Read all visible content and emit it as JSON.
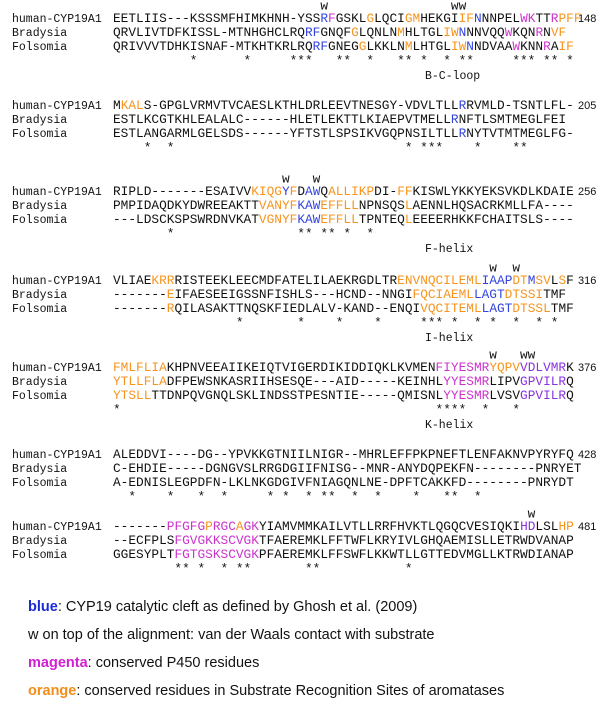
{
  "blocks": [
    {
      "w": "                           w                ww",
      "rows": [
        {
          "name": "human-CYP19A1",
          "end": "148",
          "seq": [
            "EETLIIS---KSSSMFHIMKHNH-YSS",
            {
              "text": "R",
              "color": "#3344dd"
            },
            {
              "text": "F",
              "color": "#cc33cc"
            },
            "GSKL",
            {
              "text": "G",
              "color": "#f7941d"
            },
            "LQCI",
            {
              "text": "GM",
              "color": "#f7941d"
            },
            "HEKGI",
            {
              "text": "IF",
              "color": "#f7941d"
            },
            {
              "text": "N",
              "color": "#3344dd"
            },
            "NNPEL",
            {
              "text": "W",
              "color": "#cc33cc"
            },
            {
              "text": "K",
              "color": "#cc33cc"
            },
            "TT",
            {
              "text": "R",
              "color": "#cc33cc"
            },
            {
              "text": "P",
              "color": "#f7941d"
            },
            {
              "text": "FF",
              "color": "#f7941d"
            }
          ]
        },
        {
          "name": "Bradysia",
          "seq": [
            "QRVLIVTDFKISSL-MTNHGHCLRQ",
            {
              "text": "RF",
              "color": "#3344dd"
            },
            "GNQF",
            {
              "text": "G",
              "color": "#f7941d"
            },
            "LQNLN",
            {
              "text": "M",
              "color": "#f7941d"
            },
            "HLTGL",
            {
              "text": "IW",
              "color": "#f7941d"
            },
            {
              "text": "N",
              "color": "#3344dd"
            },
            "NNVQQ",
            {
              "text": "W",
              "color": "#cc33cc"
            },
            "KQN",
            {
              "text": "R",
              "color": "#cc33cc"
            },
            "N",
            {
              "text": "VF",
              "color": "#f7941d"
            }
          ]
        },
        {
          "name": "Folsomia",
          "seq": [
            "QRIVVVTDHKISNAF-MTKHTKRLRQ",
            {
              "text": "RF",
              "color": "#3344dd"
            },
            "GNEG",
            {
              "text": "G",
              "color": "#f7941d"
            },
            "LKKLN",
            {
              "text": "M",
              "color": "#f7941d"
            },
            "LHTGL",
            {
              "text": "IW",
              "color": "#f7941d"
            },
            {
              "text": "N",
              "color": "#3344dd"
            },
            "NDVAA",
            {
              "text": "W",
              "color": "#cc33cc"
            },
            "KNN",
            {
              "text": "R",
              "color": "#cc33cc"
            },
            "A",
            {
              "text": "IF",
              "color": "#f7941d"
            }
          ]
        }
      ],
      "stars": "          *      *     ***   **  *   ** *  * **     *** ** *",
      "label": "B-C-loop"
    },
    {
      "rows": [
        {
          "name": "human-CYP19A1",
          "end": "205",
          "seq": [
            "M",
            {
              "text": "KAL",
              "color": "#f7941d"
            },
            "S-GPGLVRMVTVCAESLKTHLDRLEEVTNESGY-VDVLTLL",
            {
              "text": "R",
              "color": "#3344dd"
            },
            "RVMLD-TSNTLFL-"
          ]
        },
        {
          "name": "Bradysia",
          "seq": [
            "ESTLKCGTKHLEALALC------HLETLEKTTLKIAEPVTMELL",
            {
              "text": "R",
              "color": "#3344dd"
            },
            "NFTLSMTMEGLFEI"
          ]
        },
        {
          "name": "Folsomia",
          "seq": [
            "ESTLANGARMLGELSDS------YFTSTLSPSIKVGQPNSILTLL",
            {
              "text": "R",
              "color": "#3344dd"
            },
            "NYTVTMTMEGLFG-"
          ]
        }
      ],
      "stars": "    *  *                              * ***    *    **"
    },
    {
      "w": "                      w   w",
      "rows": [
        {
          "name": "human-CYP19A1",
          "end": "256",
          "seq": [
            "RIPLD-------ESAIVV",
            {
              "text": "KIQG",
              "color": "#f7941d"
            },
            {
              "text": "Y",
              "color": "#3344dd"
            },
            {
              "text": "F",
              "color": "#f7941d"
            },
            "D",
            {
              "text": "AW",
              "color": "#3344dd"
            },
            "Q",
            {
              "text": "ALLIKP",
              "color": "#f7941d"
            },
            "DI-",
            {
              "text": "FF",
              "color": "#f7941d"
            },
            "KISWLYKKYEKSVKDLKDAIE"
          ]
        },
        {
          "name": "Bradysia",
          "seq": [
            "PMPIDAQDKYDWREEAKTT",
            {
              "text": "VANYF",
              "color": "#f7941d"
            },
            {
              "text": "KAW",
              "color": "#3344dd"
            },
            {
              "text": "EFFLL",
              "color": "#f7941d"
            },
            "NPNSQS",
            {
              "text": "L",
              "color": "#f7941d"
            },
            "AENNLHQSACRKMLLFA----"
          ]
        },
        {
          "name": "Folsomia",
          "seq": [
            "---LDSCKSPSWRDNVKAT",
            {
              "text": "VGNYF",
              "color": "#f7941d"
            },
            {
              "text": "KAW",
              "color": "#3344dd"
            },
            {
              "text": "EFFLL",
              "color": "#f7941d"
            },
            "TPNTEQ",
            {
              "text": "L",
              "color": "#f7941d"
            },
            "EEEERHKKFCHAITSLS----"
          ]
        }
      ],
      "stars": "       *                ** ** *  *",
      "label": "F-helix"
    },
    {
      "w": "                                                 w  w",
      "rows": [
        {
          "name": "human-CYP19A1",
          "end": "316",
          "seq": [
            "VLIAE",
            {
              "text": "KRR",
              "color": "#f7941d"
            },
            "RISTEEKLEECMDFATELILAEKRGDLTR",
            {
              "text": "ENV",
              "color": "#f7941d"
            },
            {
              "text": "NQCILEML",
              "color": "#f7941d"
            },
            {
              "text": "IAA",
              "color": "#3344dd"
            },
            {
              "text": "P",
              "color": "#3344dd"
            },
            {
              "text": "DT",
              "color": "#f7941d"
            },
            {
              "text": "M",
              "color": "#3344dd"
            },
            {
              "text": "SV",
              "color": "#f7941d"
            },
            "L",
            {
              "text": "S",
              "color": "#f7941d"
            },
            "F"
          ]
        },
        {
          "name": "Bradysia",
          "seq": [
            "-------",
            {
              "text": "E",
              "color": "#f7941d"
            },
            "IFAESEEIGSSNFISHLS---HCND--NNGI",
            {
              "text": "FQCIAEML",
              "color": "#f7941d"
            },
            {
              "text": "LAGT",
              "color": "#3344dd"
            },
            {
              "text": "DTSS",
              "color": "#f7941d"
            },
            {
              "text": "I",
              "color": "#f7941d"
            },
            "TMF"
          ]
        },
        {
          "name": "Folsomia",
          "seq": [
            "-------",
            {
              "text": "R",
              "color": "#f7941d"
            },
            "QILASAKTTNQSKFIEDLALV-KAND--ENQI",
            {
              "text": "VQCITEML",
              "color": "#f7941d"
            },
            {
              "text": "LAGT",
              "color": "#3344dd"
            },
            {
              "text": "DTSS",
              "color": "#f7941d"
            },
            {
              "text": "L",
              "color": "#f7941d"
            },
            "TMF"
          ]
        }
      ],
      "stars": "                *       *    *    *     *** *  * *  *  * *",
      "label": "I-helix"
    },
    {
      "w": "                                                 w   ww",
      "rows": [
        {
          "name": "human-CYP19A1",
          "end": "376",
          "seq": [
            {
              "text": "FMLFLIA",
              "color": "#f7941d"
            },
            "KHPNVEEAIIKEIQTVIGERDIKIDDIQKLKVMEN",
            {
              "text": "FIYESMR",
              "color": "#cc33cc"
            },
            {
              "text": "YQPV",
              "color": "#f7941d"
            },
            {
              "text": "VDLVMR",
              "color": "#8833dd"
            },
            "K"
          ]
        },
        {
          "name": "Bradysia",
          "seq": [
            {
              "text": "YTLLFLA",
              "color": "#f7941d"
            },
            "DFPEWSNKASRIIHSESQE---AID-----KEINHL",
            {
              "text": "YYESMR",
              "color": "#cc33cc"
            },
            "LIPV",
            {
              "text": "GPVILR",
              "color": "#8833dd"
            },
            "Q"
          ]
        },
        {
          "name": "Folsomia",
          "seq": [
            {
              "text": "YTSLL",
              "color": "#f7941d"
            },
            "TTDNPQVGNQLSKLINDSSTPESNTIE-----QMISNL",
            {
              "text": "YYESMR",
              "color": "#cc33cc"
            },
            "LVSV",
            {
              "text": "GPVILR",
              "color": "#8833dd"
            },
            "Q"
          ]
        }
      ],
      "stars": "*                                         ****  *   *",
      "label": "K-helix"
    },
    {
      "rows": [
        {
          "name": "human-CYP19A1",
          "end": "428",
          "seq": [
            "ALEDDVI----DG--YPVKKGTNIILNIGR--MHRLEFFPKPNEFTLENFAKNVPYRYFQ"
          ]
        },
        {
          "name": "Bradysia",
          "seq": [
            "C-EHDIE-----DGNGVSLRRGDGIIFNISG--MNR-ANYDQPEKFN--------PNRYET"
          ]
        },
        {
          "name": "Folsomia",
          "seq": [
            "A-EDNISLEGPDFN-LKLNKGDGIVFNIAGQNLNE-DPFTCAKKFD--------PNRYDT"
          ]
        }
      ],
      "stars": "  *    *   *  *     * *  * **  *  *    *   **  *"
    },
    {
      "w": "                                                      w",
      "rows": [
        {
          "name": "human-CYP19A1",
          "end": "481",
          "seq": [
            "-------",
            {
              "text": "PFGFG",
              "color": "#cc33cc"
            },
            {
              "text": "P",
              "color": "#f7941d"
            },
            {
              "text": "RGC",
              "color": "#cc33cc"
            },
            {
              "text": "A",
              "color": "#f7941d"
            },
            {
              "text": "GK",
              "color": "#cc33cc"
            },
            "YIAMVMMKAILVTLLRRFHVKTLQGQCVESIQKI",
            {
              "text": "HD",
              "color": "#8833dd"
            },
            "LSL",
            {
              "text": "HP",
              "color": "#f7941d"
            }
          ]
        },
        {
          "name": "Bradysia",
          "seq": [
            "--ECFPLS",
            {
              "text": "FGVGKKSC",
              "color": "#cc33cc"
            },
            {
              "text": "VGK",
              "color": "#cc33cc"
            },
            "TFAEREMKLFFTWFLKRYIVLGHQAEMISLLETRWDVANAP"
          ]
        },
        {
          "name": "Folsomia",
          "seq": [
            "GGESYPLT",
            {
              "text": "FGTGSKSC",
              "color": "#cc33cc"
            },
            {
              "text": "VGK",
              "color": "#cc33cc"
            },
            "PFAEREMKLFFSWFLKKWTLLGTTEDVMGLLKTRWDIANAP"
          ]
        }
      ],
      "stars": "        ** *  * **       **           *"
    }
  ],
  "legend": [
    {
      "key": "blue",
      "color": "#1a2bd6",
      "text": ": CYP19 catalytic cleft as defined by Ghosh et al. (2009)"
    },
    {
      "text": "w on top of the alignment: van der Waals contact with substrate"
    },
    {
      "key": "magenta",
      "color": "#d11fd1",
      "text": ": conserved P450 residues"
    },
    {
      "key": "orange",
      "color": "#f28c1a",
      "text": ": conserved residues in Substrate Recognition Sites of aromatases"
    }
  ]
}
